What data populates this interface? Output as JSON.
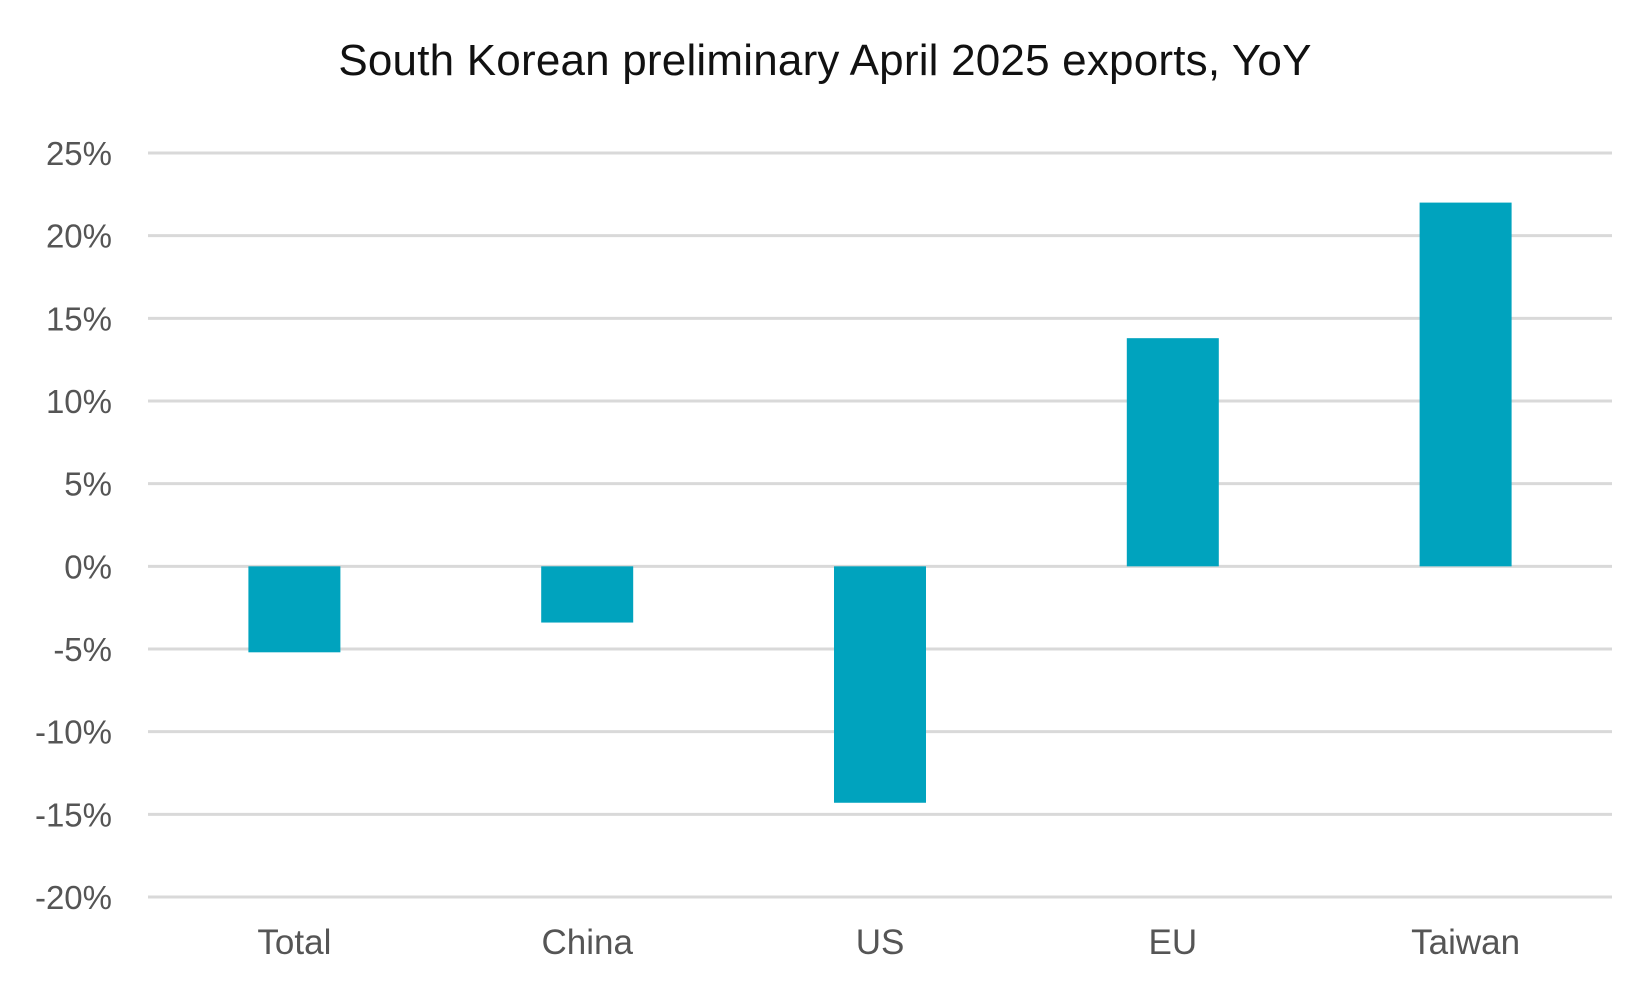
{
  "chart_data": {
    "type": "bar",
    "title": "South Korean preliminary April 2025 exports, YoY",
    "categories": [
      "Total",
      "China",
      "US",
      "EU",
      "Taiwan"
    ],
    "values": [
      -5.2,
      -3.4,
      -14.3,
      13.8,
      22.0
    ],
    "ylim": [
      -20,
      25
    ],
    "yticks": [
      25,
      20,
      15,
      10,
      5,
      0,
      -5,
      -10,
      -15,
      -20
    ],
    "ytick_labels": [
      "25%",
      "20%",
      "15%",
      "10%",
      "5%",
      "0%",
      "-5%",
      "-10%",
      "-15%",
      "-20%"
    ],
    "xlabel": "",
    "ylabel": "",
    "grid": true,
    "legend": "none",
    "bar_color": "#00A3BE"
  }
}
